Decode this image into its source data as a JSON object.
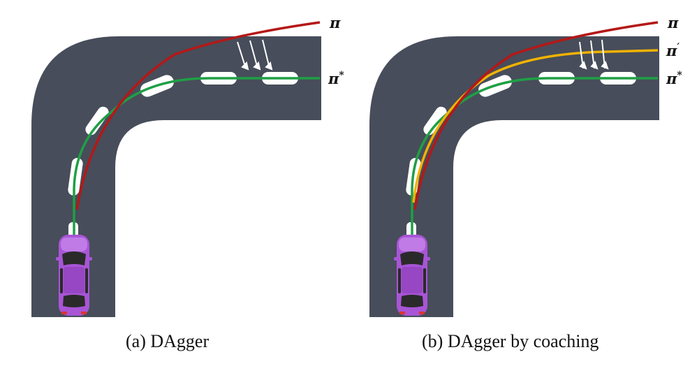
{
  "panels": [
    {
      "caption": "(a) DAgger",
      "labels": {
        "pi": "π",
        "pi_star": "π",
        "pi_star_sup": "*"
      }
    },
    {
      "caption": "(b) DAgger by coaching",
      "labels": {
        "pi": "π",
        "pi_prime": "π",
        "pi_prime_sup": "′",
        "pi_star": "π",
        "pi_star_sup": "*"
      }
    }
  ],
  "colors": {
    "road": "#474d5a",
    "lane_marking": "#ffffff",
    "expert_path": "#1f9f45",
    "learner_path": "#b41818",
    "coach_path": "#f2b200",
    "car_body": "#a855d6",
    "car_glass": "#2a2a2a",
    "arrow": "#ffffff"
  }
}
